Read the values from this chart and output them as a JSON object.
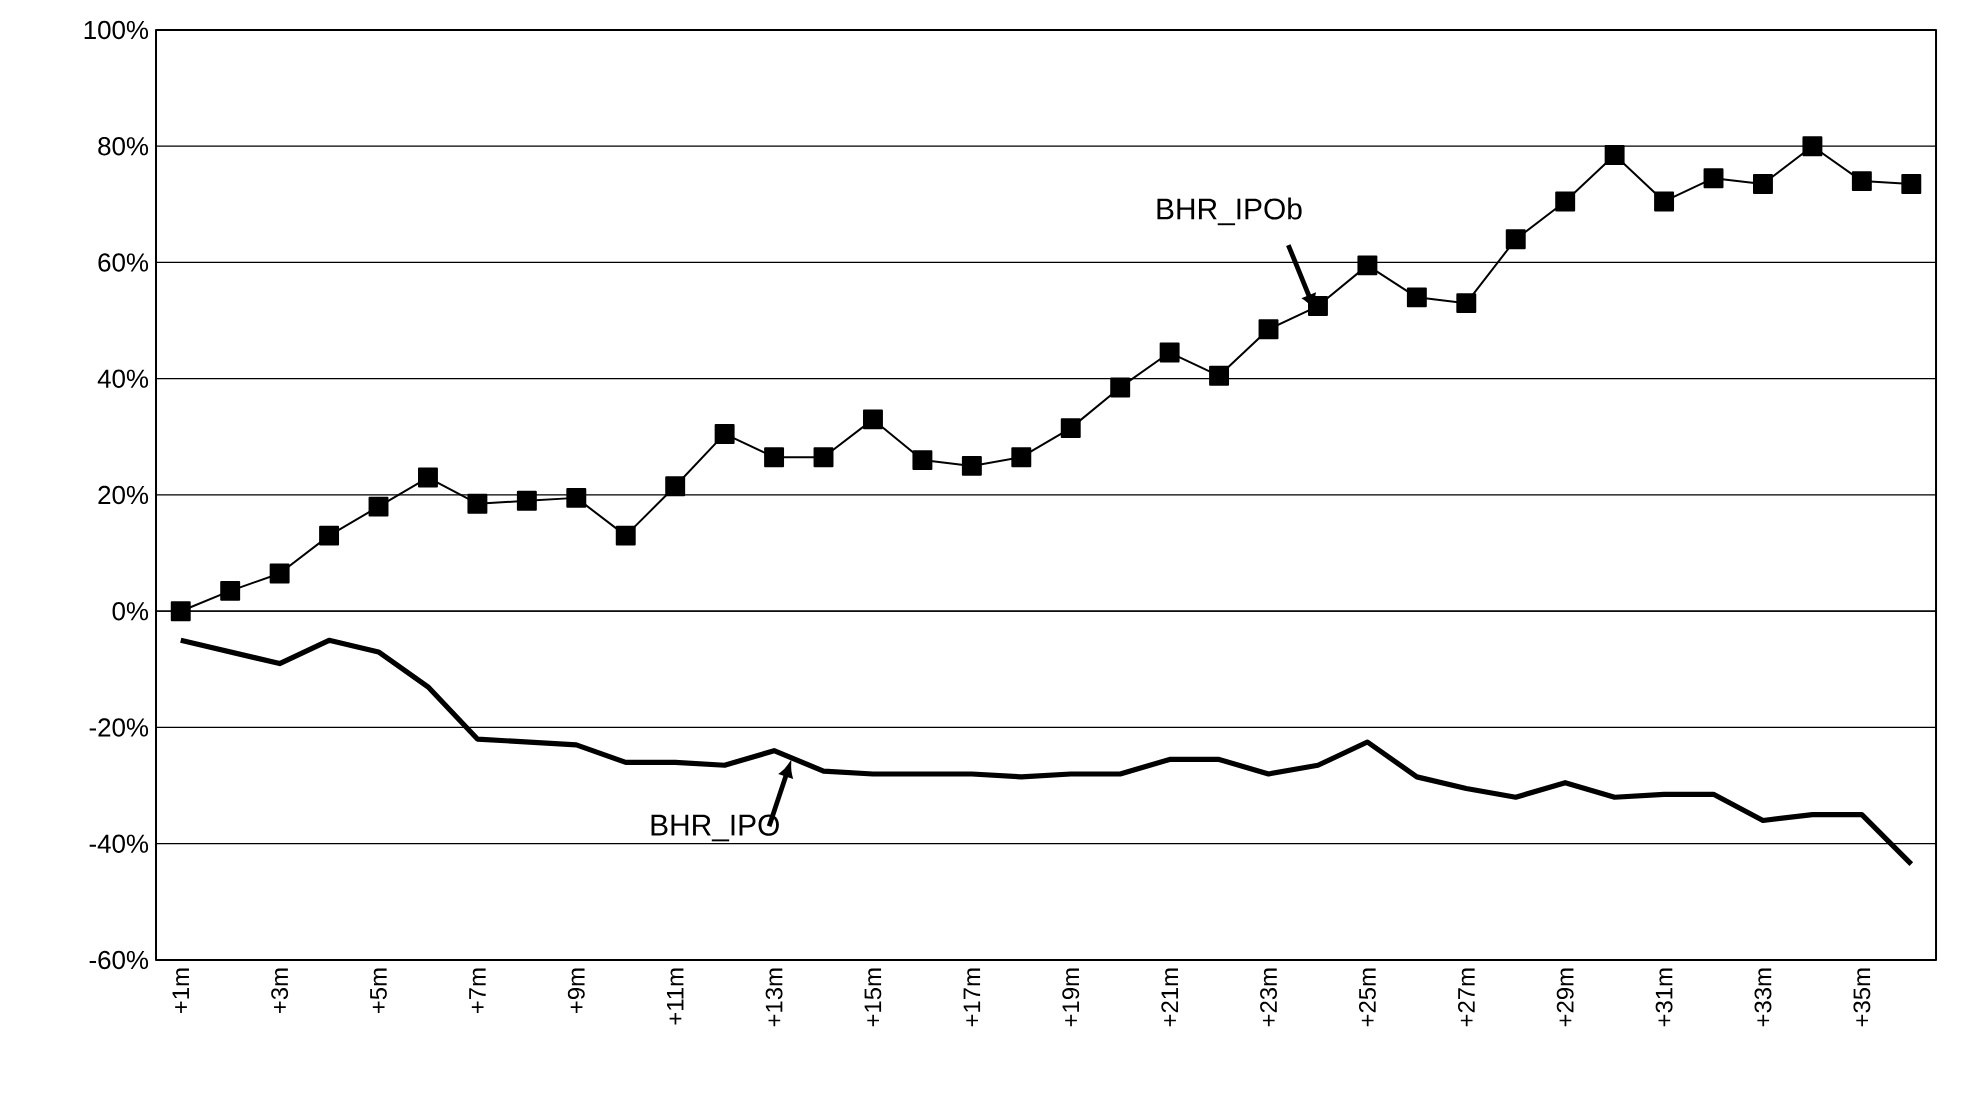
{
  "chart_data": {
    "type": "line",
    "categories": [
      "+1m",
      null,
      "+3m",
      null,
      "+5m",
      null,
      "+7m",
      null,
      "+9m",
      null,
      "+11m",
      null,
      "+13m",
      null,
      "+15m",
      null,
      "+17m",
      null,
      "+19m",
      null,
      "+21m",
      null,
      "+23m",
      null,
      "+25m",
      null,
      "+27m",
      null,
      "+29m",
      null,
      "+31m",
      null,
      "+33m",
      null,
      "+35m",
      null
    ],
    "series": [
      {
        "color": "#000000",
        "marker": "square",
        "values": [
          0,
          3.5,
          6.5,
          13,
          18,
          23,
          18.5,
          19,
          19.5,
          13,
          21.5,
          30.5,
          26.5,
          26.5,
          33,
          26,
          25,
          26.5,
          31.5,
          38.5,
          44.5,
          40.5,
          48.5,
          52.5,
          59.5,
          54,
          53,
          64,
          70.5,
          78.5,
          70.5,
          74.5,
          73.5,
          80,
          74,
          73.5
        ]
      },
      {
        "color": "#000000",
        "marker": "none",
        "values": [
          -5,
          -7,
          -9,
          -5,
          -7,
          -13,
          -22,
          -22.5,
          -23,
          -26,
          -26,
          -26.5,
          -24,
          -27.5,
          -28,
          -28,
          -28,
          -28.5,
          -28,
          -28,
          -25.5,
          -25.5,
          -28,
          -26.5,
          -22.5,
          -28.5,
          -30.5,
          -32,
          -29.5,
          -32,
          -31.5,
          -31.5,
          -36,
          -35,
          -35,
          -43.5
        ]
      }
    ],
    "ylim": [
      -60,
      100
    ],
    "yticks": [
      {
        "value": -60,
        "label": "-60%"
      },
      {
        "value": -40,
        "label": "-40%"
      },
      {
        "value": -20,
        "label": "-20%"
      },
      {
        "value": 0,
        "label": "0%"
      },
      {
        "value": 20,
        "label": "20%"
      },
      {
        "value": 40,
        "label": "40%"
      },
      {
        "value": 60,
        "label": "60%"
      },
      {
        "value": 80,
        "label": "80%"
      },
      {
        "value": 100,
        "label": "100%"
      }
    ],
    "grid": "y",
    "legend": false,
    "annotations": [
      "BHR_IPOb",
      "BHR_IPO"
    ]
  }
}
